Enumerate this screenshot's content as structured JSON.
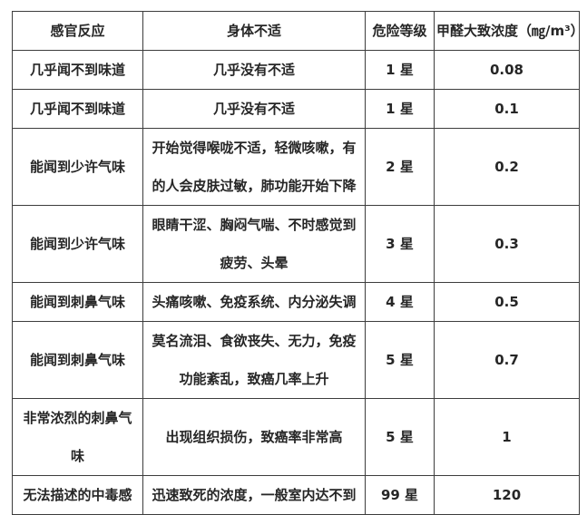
{
  "appearance": {
    "border_color": "#3d3d3d",
    "text_color": "#262626",
    "background_color": "#ffffff"
  },
  "chart_data": {
    "type": "table",
    "title": "",
    "columns": [
      "感官反应",
      "身体不适",
      "危险等级",
      "甲醛大致浓度（㎎/m³）"
    ],
    "rows": [
      [
        "几乎闻不到味道",
        "几乎没有不适",
        "1 星",
        "0.08"
      ],
      [
        "几乎闻不到味道",
        "几乎没有不适",
        "1 星",
        "0.1"
      ],
      [
        "能闻到少许气味",
        "开始觉得喉咙不适，轻微咳嗽，有的人会皮肤过敏，肺功能开始下降",
        "2 星",
        "0.2"
      ],
      [
        "能闻到少许气味",
        "眼睛干涩、胸闷气喘、不时感觉到疲劳、头晕",
        "3 星",
        "0.3"
      ],
      [
        "能闻到刺鼻气味",
        "头痛咳嗽、免疫系统、内分泌失调",
        "4 星",
        "0.5"
      ],
      [
        "能闻到刺鼻气味",
        "莫名流泪、食欲丧失、无力，免疫功能紊乱，致癌几率上升",
        "5 星",
        "0.7"
      ],
      [
        "非常浓烈的刺鼻气味",
        "出现组织损伤，致癌率非常高",
        "5 星",
        "1"
      ],
      [
        "无法描述的中毒感",
        "迅速致死的浓度，一般室内达不到",
        "99 星",
        "120"
      ]
    ],
    "concentration_values_mg_m3": [
      0.08,
      0.1,
      0.2,
      0.3,
      0.5,
      0.7,
      1,
      120
    ],
    "danger_star_levels": [
      1,
      1,
      2,
      3,
      4,
      5,
      5,
      99
    ],
    "layout_hints": {
      "grid": true,
      "header_row": true,
      "all_text_bold": true,
      "alignment": "center"
    }
  }
}
